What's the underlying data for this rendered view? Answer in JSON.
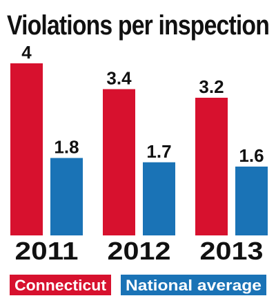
{
  "chart_data": {
    "type": "bar",
    "title": "Violations per inspection",
    "categories": [
      "2011",
      "2012",
      "2013"
    ],
    "series": [
      {
        "name": "Connecticut",
        "values": [
          4,
          3.4,
          3.2
        ],
        "labels": [
          "4",
          "3.4",
          "3.2"
        ],
        "color": "#d7112e"
      },
      {
        "name": "National average",
        "values": [
          1.8,
          1.7,
          1.6
        ],
        "labels": [
          "1.8",
          "1.7",
          "1.6"
        ],
        "color": "#1a73b6"
      }
    ],
    "ylim": [
      0,
      4
    ],
    "grid": false,
    "legend_position": "bottom"
  }
}
